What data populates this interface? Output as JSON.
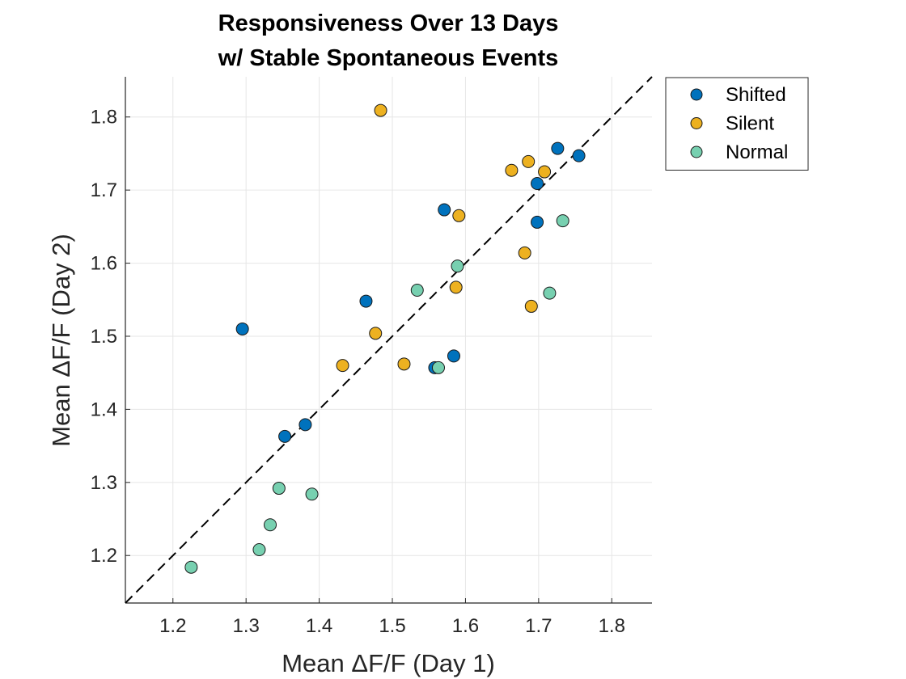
{
  "chart_data": {
    "type": "scatter",
    "title": [
      "Responsiveness Over 13 Days",
      "w/ Stable Spontaneous Events"
    ],
    "xlabel": "Mean ΔF/F (Day 1)",
    "ylabel": "Mean ΔF/F (Day 2)",
    "xlim": [
      1.135,
      1.855
    ],
    "ylim": [
      1.135,
      1.855
    ],
    "xticks": [
      "1.2",
      "1.3",
      "1.4",
      "1.5",
      "1.6",
      "1.7",
      "1.8"
    ],
    "yticks": [
      "1.2",
      "1.3",
      "1.4",
      "1.5",
      "1.6",
      "1.7",
      "1.8"
    ],
    "grid": true,
    "legend_position": "outside top-right",
    "reference_line": "dashed diagonal y = x",
    "series": [
      {
        "name": "Shifted",
        "color": "#0072BD",
        "points": [
          {
            "x": 1.295,
            "y": 1.51
          },
          {
            "x": 1.353,
            "y": 1.363
          },
          {
            "x": 1.381,
            "y": 1.379
          },
          {
            "x": 1.464,
            "y": 1.548
          },
          {
            "x": 1.558,
            "y": 1.457
          },
          {
            "x": 1.571,
            "y": 1.673
          },
          {
            "x": 1.584,
            "y": 1.473
          },
          {
            "x": 1.698,
            "y": 1.709
          },
          {
            "x": 1.698,
            "y": 1.656
          },
          {
            "x": 1.726,
            "y": 1.757
          },
          {
            "x": 1.755,
            "y": 1.747
          }
        ]
      },
      {
        "name": "Silent",
        "color": "#EDB120",
        "points": [
          {
            "x": 1.432,
            "y": 1.46
          },
          {
            "x": 1.477,
            "y": 1.504
          },
          {
            "x": 1.484,
            "y": 1.809
          },
          {
            "x": 1.516,
            "y": 1.462
          },
          {
            "x": 1.587,
            "y": 1.567
          },
          {
            "x": 1.591,
            "y": 1.665
          },
          {
            "x": 1.663,
            "y": 1.727
          },
          {
            "x": 1.681,
            "y": 1.614
          },
          {
            "x": 1.686,
            "y": 1.739
          },
          {
            "x": 1.69,
            "y": 1.541
          },
          {
            "x": 1.708,
            "y": 1.725
          }
        ]
      },
      {
        "name": "Normal",
        "color": "#77D0B0",
        "points": [
          {
            "x": 1.225,
            "y": 1.184
          },
          {
            "x": 1.318,
            "y": 1.208
          },
          {
            "x": 1.333,
            "y": 1.242
          },
          {
            "x": 1.345,
            "y": 1.292
          },
          {
            "x": 1.39,
            "y": 1.284
          },
          {
            "x": 1.534,
            "y": 1.563
          },
          {
            "x": 1.563,
            "y": 1.457
          },
          {
            "x": 1.589,
            "y": 1.596
          },
          {
            "x": 1.715,
            "y": 1.559
          },
          {
            "x": 1.733,
            "y": 1.658
          }
        ]
      }
    ]
  }
}
